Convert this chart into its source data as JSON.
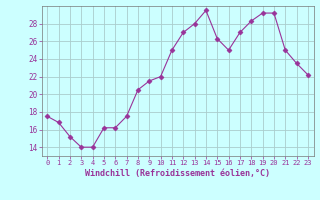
{
  "x": [
    0,
    1,
    2,
    3,
    4,
    5,
    6,
    7,
    8,
    9,
    10,
    11,
    12,
    13,
    14,
    15,
    16,
    17,
    18,
    19,
    20,
    21,
    22,
    23
  ],
  "y": [
    17.5,
    16.8,
    15.2,
    14.0,
    14.0,
    16.2,
    16.2,
    17.5,
    20.5,
    21.5,
    22.0,
    25.0,
    27.0,
    28.0,
    29.5,
    26.3,
    25.0,
    27.0,
    28.3,
    29.2,
    29.2,
    25.0,
    23.5,
    22.2
  ],
  "line_color": "#993399",
  "marker": "D",
  "marker_size": 2.5,
  "bg_color": "#ccffff",
  "grid_color": "#aacccc",
  "xlabel": "Windchill (Refroidissement éolien,°C)",
  "xlabel_color": "#993399",
  "tick_color": "#993399",
  "ylim": [
    13.0,
    30.0
  ],
  "yticks": [
    14,
    16,
    18,
    20,
    22,
    24,
    26,
    28
  ],
  "figsize": [
    3.2,
    2.0
  ],
  "dpi": 100
}
